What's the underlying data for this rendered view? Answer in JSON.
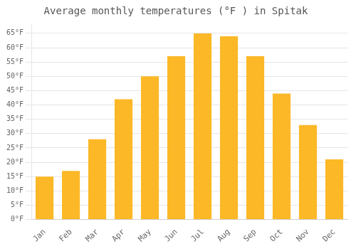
{
  "chart_data": {
    "type": "bar",
    "title": "Average monthly temperatures (°F ) in Spitak",
    "categories": [
      "Jan",
      "Feb",
      "Mar",
      "Apr",
      "May",
      "Jun",
      "Jul",
      "Aug",
      "Sep",
      "Oct",
      "Nov",
      "Dec"
    ],
    "values": [
      15,
      17,
      28,
      42,
      50,
      57,
      65,
      64,
      57,
      44,
      33,
      21
    ],
    "color": "#FDB827",
    "ylim": [
      0,
      68
    ],
    "yticks": [
      {
        "value": 0,
        "label": "0°F"
      },
      {
        "value": 5,
        "label": "5°F"
      },
      {
        "value": 10,
        "label": "10°F"
      },
      {
        "value": 15,
        "label": "15°F"
      },
      {
        "value": 20,
        "label": "20°F"
      },
      {
        "value": 25,
        "label": "25°F"
      },
      {
        "value": 30,
        "label": "30°F"
      },
      {
        "value": 35,
        "label": "35°F"
      },
      {
        "value": 40,
        "label": "40°F"
      },
      {
        "value": 45,
        "label": "45°F"
      },
      {
        "value": 50,
        "label": "50°F"
      },
      {
        "value": 55,
        "label": "55°F"
      },
      {
        "value": 60,
        "label": "60°F"
      },
      {
        "value": 65,
        "label": "65°F"
      }
    ],
    "grid": true
  }
}
